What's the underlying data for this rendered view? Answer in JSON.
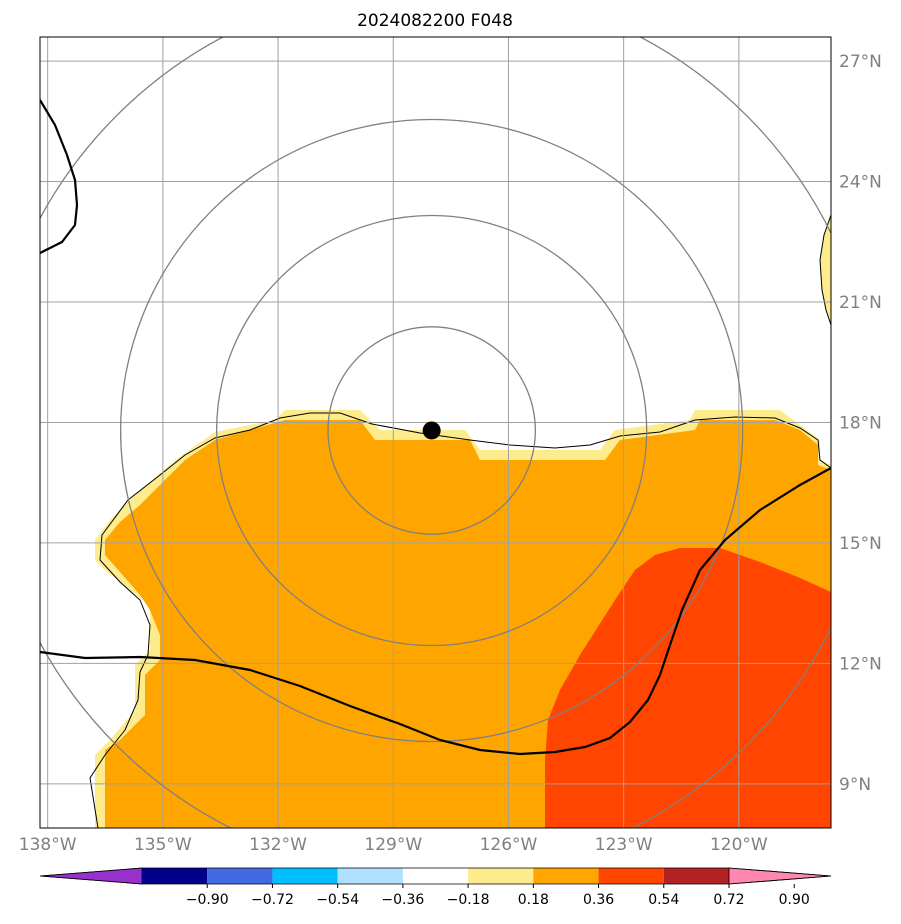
{
  "title": "2024082200 F048",
  "map": {
    "lon_range": [
      -138.2,
      -117.6
    ],
    "lat_range": [
      7.9,
      27.6
    ],
    "lon_ticks": [
      {
        "value": -138,
        "label": "138°W"
      },
      {
        "value": -135,
        "label": "135°W"
      },
      {
        "value": -132,
        "label": "132°W"
      },
      {
        "value": -129,
        "label": "129°W"
      },
      {
        "value": -126,
        "label": "126°W"
      },
      {
        "value": -123,
        "label": "123°W"
      },
      {
        "value": -120,
        "label": "120°W"
      }
    ],
    "lat_ticks": [
      {
        "value": 9,
        "label": "9°N"
      },
      {
        "value": 12,
        "label": "12°N"
      },
      {
        "value": 15,
        "label": "15°N"
      },
      {
        "value": 18,
        "label": "18°N"
      },
      {
        "value": 21,
        "label": "21°N"
      },
      {
        "value": 24,
        "label": "24°N"
      },
      {
        "value": 27,
        "label": "27°N"
      }
    ],
    "grid": true,
    "storm_center": {
      "lon": -128.0,
      "lat": 17.8
    },
    "range_rings_deg": [
      2.7,
      5.6,
      8.1,
      11.6
    ],
    "field_colors": {
      "light": "#fdeb8c",
      "orange": "#ffa500",
      "red": "#ff4500"
    },
    "line_color": "#000000",
    "ring_color": "#808080"
  },
  "colorbar": {
    "colors": [
      "#9932cc",
      "#00008b",
      "#4169e1",
      "#00bfff",
      "#b0e0ff",
      "#ffffff",
      "#fdeb8c",
      "#ffa500",
      "#ff4500",
      "#b22222",
      "#ff88b0"
    ],
    "labels": [
      "−0.90",
      "−0.72",
      "−0.54",
      "−0.36",
      "−0.18",
      "0.18",
      "0.36",
      "0.54",
      "0.72",
      "0.90"
    ],
    "values": [
      -0.9,
      -0.72,
      -0.54,
      -0.36,
      -0.18,
      0.18,
      0.36,
      0.54,
      0.72,
      0.9
    ]
  }
}
